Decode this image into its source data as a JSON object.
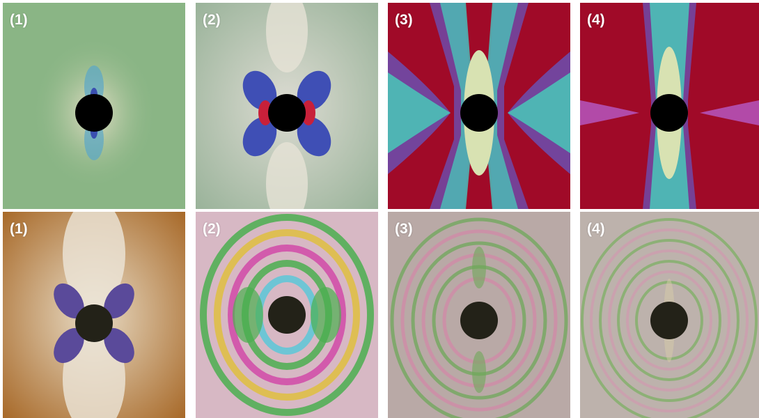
{
  "figure": {
    "rows": [
      {
        "panels": [
          {
            "label": "(1)",
            "style": "green-fringes"
          },
          {
            "label": "(2)",
            "style": "white-blue-lobes"
          },
          {
            "label": "(3)",
            "style": "red-isochromatic"
          },
          {
            "label": "(4)",
            "style": "red-isochromatic-2"
          }
        ]
      },
      {
        "panels": [
          {
            "label": "(1)",
            "style": "brown-fringes"
          },
          {
            "label": "(2)",
            "style": "rainbow-fringes"
          },
          {
            "label": "(3)",
            "style": "dense-fringes"
          },
          {
            "label": "(4)",
            "style": "denser-fringes"
          }
        ]
      }
    ]
  }
}
